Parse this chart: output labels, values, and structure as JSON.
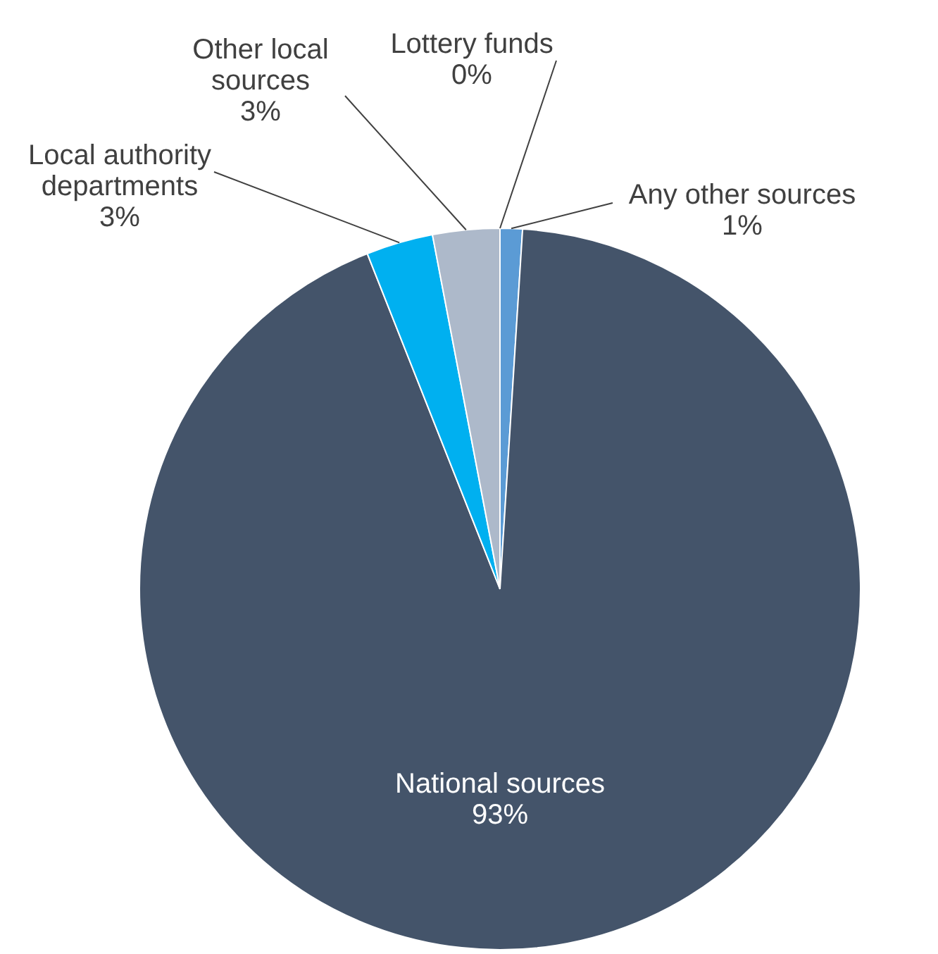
{
  "chart_data": {
    "type": "pie",
    "categories": [
      "Any other sources",
      "National sources",
      "Local authority departments",
      "Other local sources",
      "Lottery funds"
    ],
    "values": [
      1,
      93,
      3,
      3,
      0
    ],
    "value_labels": [
      "1%",
      "93%",
      "3%",
      "3%",
      "0%"
    ],
    "colors": [
      "#5b9bd5",
      "#44546a",
      "#00b0f0",
      "#adb9ca",
      "#333f50"
    ]
  }
}
